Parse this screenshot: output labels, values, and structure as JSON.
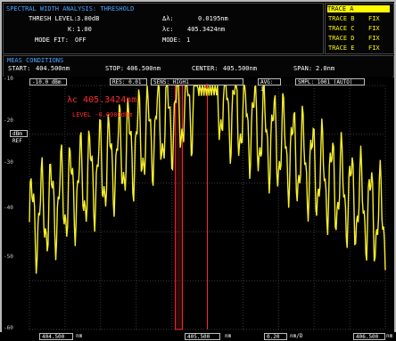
{
  "header": {
    "title": "SPECTRAL WIDTH ANALYSIS: THRESHOLD",
    "rows": [
      {
        "label": "THRESH LEVEL:",
        "value": "3.00dB",
        "label2": "Δλ:",
        "value2": "0.0195nm"
      },
      {
        "label": "K:",
        "value": "1.00",
        "label2": "λc:",
        "value2": "405.3424nm"
      },
      {
        "label": "MODE FIT:",
        "value": "OFF",
        "label2": "MODE:",
        "value2": "1"
      }
    ]
  },
  "trace_list": {
    "selected": "TRACE A",
    "items": [
      {
        "name": "TRACE B",
        "value": "FIX"
      },
      {
        "name": "TRACE C",
        "value": "FIX"
      },
      {
        "name": "TRACE D",
        "value": "FIX"
      },
      {
        "name": "TRACE E",
        "value": "FIX"
      }
    ]
  },
  "conditions": {
    "title": "MEAS CONDITIONS",
    "start_label": "START:",
    "start": "404.500nm",
    "stop_label": "STOP:",
    "stop": "406.500nm",
    "center_label": "CENTER:",
    "center": "405.500nm",
    "span_label": "SPAN:",
    "span": "2.0nm"
  },
  "chart_toolbar": {
    "ref_value": "-10.0",
    "ref_unit": "dBm",
    "res_label": "RES:",
    "res_value": "0.01",
    "res_unit": "nm",
    "sens_label": "SENS:",
    "sens_value": "HIGH1",
    "avg_label": "AVG:",
    "avg_value": "1",
    "smpl_label": "SMPL:",
    "smpl_value": "1001 (AUTO)"
  },
  "annotations": {
    "primary": "λc 405.3424nm",
    "secondary": "LEVEL -0.0000dBm",
    "ref_level": "dBm REF",
    "peak_marker": "4"
  },
  "chart_data": {
    "type": "line",
    "x_range": [
      404.5,
      406.5
    ],
    "y_range": [
      -60,
      -10
    ],
    "y_ticks": [
      -10,
      -20,
      -30,
      -40,
      -50,
      -60
    ],
    "center_line": 405.5,
    "threshold_lines": [
      405.33,
      405.35
    ],
    "trace_color": "#f6ef2c"
  },
  "bottom": {
    "left_value": "404.500",
    "left_unit": "nm",
    "center_value": "405.500",
    "center_unit": "nm",
    "span_value": "0.20",
    "span_unit": "nm/D",
    "right_value": "406.500",
    "right_unit": "nm"
  }
}
